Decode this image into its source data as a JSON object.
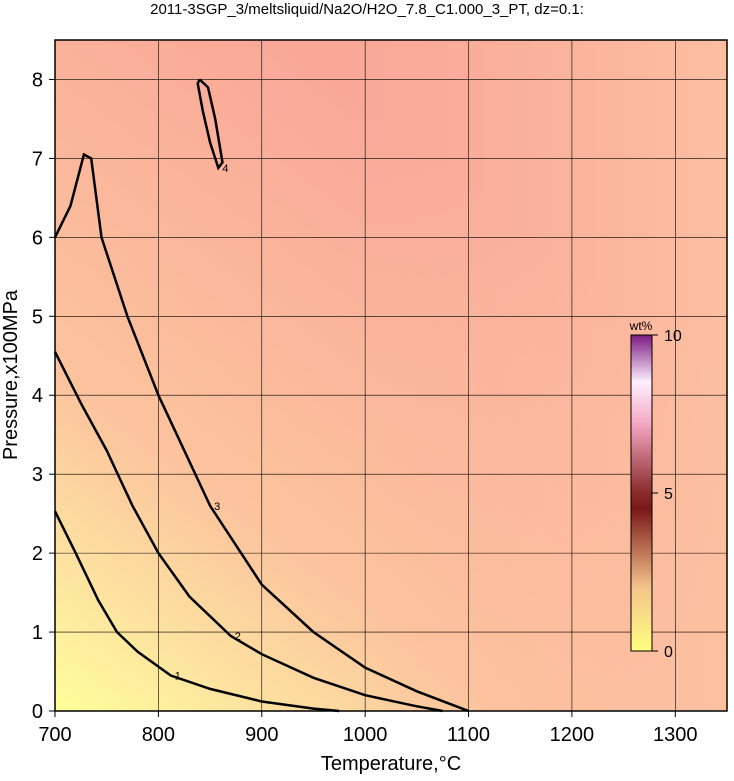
{
  "chart_data": {
    "type": "contour",
    "title": "2011-3SGP_3/meltsliquid/Na2O/H2O_7.8_C1.000_3_PT, dz=0.1:",
    "x_label": "Temperature,°C",
    "y_label": "Pressure,x100MPa",
    "xlim": [
      700,
      1350
    ],
    "ylim": [
      0,
      8.5
    ],
    "xticks": [
      700,
      800,
      900,
      1000,
      1100,
      1200,
      1300
    ],
    "yticks": [
      0,
      1,
      2,
      3,
      4,
      5,
      6,
      7,
      8
    ],
    "grid": true,
    "contours": [
      {
        "level": 1,
        "x": [
          700,
          720,
          742,
          760,
          780,
          812,
          850,
          900,
          950,
          975
        ],
        "y": [
          2.53,
          2.0,
          1.4,
          1.0,
          0.75,
          0.45,
          0.28,
          0.12,
          0.03,
          0
        ]
      },
      {
        "level": 2,
        "x": [
          700,
          725,
          750,
          775,
          800,
          830,
          870,
          900,
          950,
          1000,
          1050,
          1075
        ],
        "y": [
          4.55,
          3.9,
          3.3,
          2.6,
          2.0,
          1.45,
          0.95,
          0.72,
          0.42,
          0.2,
          0.06,
          0
        ]
      },
      {
        "level": 3,
        "x": [
          700,
          715,
          728,
          735,
          745,
          770,
          800,
          850,
          900,
          950,
          1000,
          1050,
          1090,
          1100
        ],
        "y": [
          6.0,
          6.4,
          7.05,
          7.0,
          6.0,
          5.0,
          4.0,
          2.6,
          1.6,
          1.0,
          0.55,
          0.25,
          0.05,
          0
        ]
      },
      {
        "level": 4,
        "x": [
          840,
          848,
          855,
          862,
          858,
          850,
          843,
          838,
          840
        ],
        "y": [
          8.0,
          7.9,
          7.5,
          6.95,
          6.88,
          7.2,
          7.6,
          7.95,
          8.0
        ]
      }
    ],
    "colorbar_label": "wt%",
    "colorbar_lim": [
      0,
      10
    ],
    "colorbar_ticks": [
      0,
      5,
      10
    ]
  }
}
